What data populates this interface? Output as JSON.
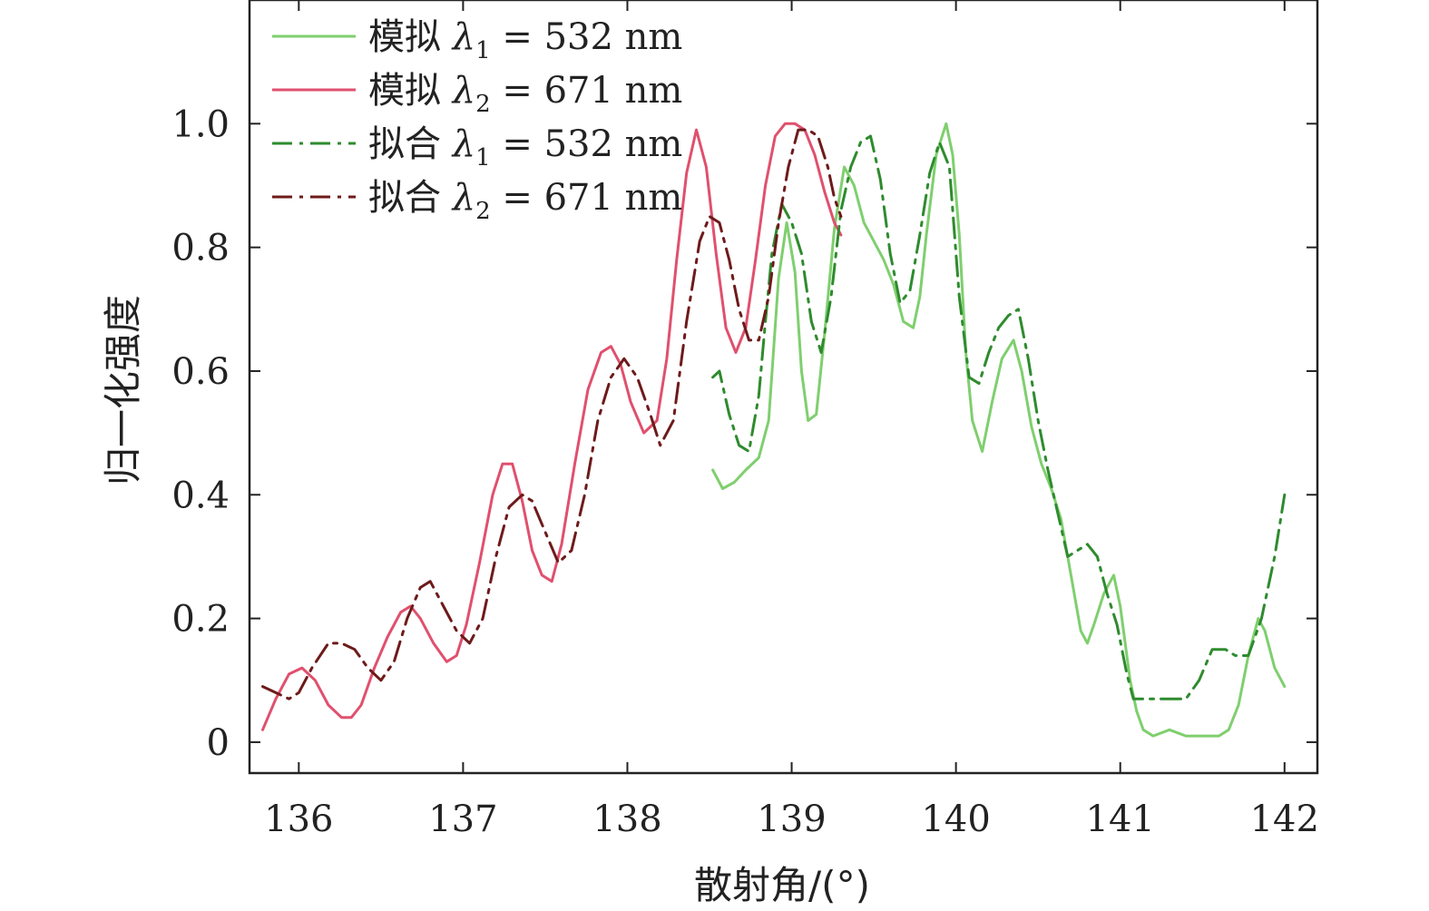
{
  "chart_data": {
    "type": "line",
    "xlabel": "散射角/(°)",
    "ylabel": "归一化强度",
    "xlim": [
      135.7,
      142.2
    ],
    "ylim": [
      -0.05,
      1.2
    ],
    "xticks": [
      136,
      137,
      138,
      139,
      140,
      141,
      142
    ],
    "yticks": [
      0,
      0.2,
      0.4,
      0.6,
      0.8,
      1.0
    ],
    "ytick_labels": [
      "0",
      "0.2",
      "0.4",
      "0.6",
      "0.8",
      "1.0"
    ],
    "grid": false,
    "legend_position": "top-left",
    "series": [
      {
        "name": "模拟 λ1 = 532 nm",
        "legend_prefix": "模拟 ",
        "legend_symbol": "λ",
        "legend_sub": "1",
        "legend_suffix": " = 532 nm",
        "color": "#7fcf6e",
        "style": "solid",
        "x": [
          138.52,
          138.58,
          138.65,
          138.72,
          138.8,
          138.86,
          138.92,
          138.97,
          139.02,
          139.06,
          139.1,
          139.15,
          139.2,
          139.26,
          139.32,
          139.38,
          139.44,
          139.5,
          139.56,
          139.62,
          139.68,
          139.74,
          139.78,
          139.82,
          139.88,
          139.94,
          139.98,
          140.02,
          140.06,
          140.1,
          140.16,
          140.22,
          140.28,
          140.35,
          140.4,
          140.46,
          140.52,
          140.58,
          140.64,
          140.7,
          140.76,
          140.8,
          140.84,
          140.9,
          140.96,
          141.0,
          141.06,
          141.1,
          141.14,
          141.2,
          141.3,
          141.4,
          141.5,
          141.6,
          141.66,
          141.72,
          141.78,
          141.84,
          141.88,
          141.94,
          142.0
        ],
        "y": [
          0.44,
          0.41,
          0.42,
          0.44,
          0.46,
          0.52,
          0.75,
          0.84,
          0.76,
          0.6,
          0.52,
          0.53,
          0.66,
          0.83,
          0.93,
          0.9,
          0.84,
          0.81,
          0.78,
          0.74,
          0.68,
          0.67,
          0.72,
          0.82,
          0.95,
          1.0,
          0.95,
          0.82,
          0.63,
          0.52,
          0.47,
          0.55,
          0.62,
          0.65,
          0.6,
          0.51,
          0.45,
          0.41,
          0.36,
          0.27,
          0.18,
          0.16,
          0.19,
          0.24,
          0.27,
          0.22,
          0.1,
          0.05,
          0.02,
          0.01,
          0.02,
          0.01,
          0.01,
          0.01,
          0.02,
          0.06,
          0.14,
          0.2,
          0.18,
          0.12,
          0.09
        ]
      },
      {
        "name": "模拟 λ2 = 671 nm",
        "legend_prefix": "模拟 ",
        "legend_symbol": "λ",
        "legend_sub": "2",
        "legend_suffix": " = 671 nm",
        "color": "#e0506e",
        "style": "solid",
        "x": [
          135.78,
          135.86,
          135.94,
          136.02,
          136.1,
          136.18,
          136.26,
          136.32,
          136.38,
          136.46,
          136.54,
          136.62,
          136.68,
          136.74,
          136.82,
          136.9,
          136.96,
          137.02,
          137.1,
          137.18,
          137.24,
          137.3,
          137.36,
          137.42,
          137.48,
          137.54,
          137.6,
          137.68,
          137.76,
          137.84,
          137.9,
          137.96,
          138.02,
          138.1,
          138.18,
          138.24,
          138.3,
          138.36,
          138.42,
          138.48,
          138.54,
          138.6,
          138.66,
          138.72,
          138.78,
          138.84,
          138.9,
          138.96,
          139.02,
          139.08,
          139.14,
          139.2,
          139.26,
          139.3
        ],
        "y": [
          0.02,
          0.07,
          0.11,
          0.12,
          0.1,
          0.06,
          0.04,
          0.04,
          0.06,
          0.12,
          0.17,
          0.21,
          0.22,
          0.2,
          0.16,
          0.13,
          0.14,
          0.19,
          0.29,
          0.4,
          0.45,
          0.45,
          0.39,
          0.31,
          0.27,
          0.26,
          0.32,
          0.45,
          0.57,
          0.63,
          0.64,
          0.61,
          0.55,
          0.5,
          0.52,
          0.62,
          0.78,
          0.92,
          0.99,
          0.93,
          0.79,
          0.67,
          0.63,
          0.67,
          0.78,
          0.9,
          0.98,
          1.0,
          1.0,
          0.99,
          0.95,
          0.89,
          0.84,
          0.82
        ]
      },
      {
        "name": "拟合 λ1 = 532 nm",
        "legend_prefix": "拟合 ",
        "legend_symbol": "λ",
        "legend_sub": "1",
        "legend_suffix": " = 532 nm",
        "color": "#2e8b2e",
        "style": "dashdot",
        "x": [
          138.52,
          138.56,
          138.62,
          138.68,
          138.74,
          138.8,
          138.84,
          138.88,
          138.94,
          139.0,
          139.06,
          139.12,
          139.18,
          139.24,
          139.3,
          139.36,
          139.42,
          139.48,
          139.54,
          139.6,
          139.66,
          139.72,
          139.78,
          139.84,
          139.9,
          139.96,
          140.02,
          140.08,
          140.14,
          140.2,
          140.26,
          140.32,
          140.38,
          140.44,
          140.5,
          140.56,
          140.62,
          140.68,
          140.74,
          140.8,
          140.86,
          140.92,
          140.98,
          141.04,
          141.08,
          141.12,
          141.2,
          141.3,
          141.4,
          141.48,
          141.56,
          141.64,
          141.7,
          141.78,
          141.86,
          141.94,
          142.0
        ],
        "y": [
          0.59,
          0.6,
          0.53,
          0.48,
          0.47,
          0.56,
          0.68,
          0.79,
          0.87,
          0.84,
          0.79,
          0.68,
          0.63,
          0.72,
          0.86,
          0.93,
          0.97,
          0.98,
          0.91,
          0.79,
          0.71,
          0.73,
          0.82,
          0.92,
          0.97,
          0.93,
          0.72,
          0.59,
          0.58,
          0.63,
          0.67,
          0.69,
          0.7,
          0.62,
          0.52,
          0.44,
          0.37,
          0.3,
          0.31,
          0.32,
          0.3,
          0.24,
          0.19,
          0.11,
          0.07,
          0.07,
          0.07,
          0.07,
          0.07,
          0.1,
          0.15,
          0.15,
          0.14,
          0.14,
          0.2,
          0.3,
          0.4
        ]
      },
      {
        "name": "拟合 λ2 = 671 nm",
        "legend_prefix": "拟合 ",
        "legend_symbol": "λ",
        "legend_sub": "2",
        "legend_suffix": " = 671 nm",
        "color": "#6e1a1a",
        "style": "dashdot",
        "x": [
          135.78,
          135.86,
          135.94,
          136.0,
          136.08,
          136.18,
          136.26,
          136.34,
          136.42,
          136.5,
          136.58,
          136.66,
          136.74,
          136.8,
          136.88,
          136.96,
          137.04,
          137.12,
          137.2,
          137.28,
          137.36,
          137.42,
          137.5,
          137.58,
          137.66,
          137.74,
          137.82,
          137.9,
          137.98,
          138.06,
          138.14,
          138.2,
          138.28,
          138.36,
          138.44,
          138.5,
          138.56,
          138.62,
          138.68,
          138.74,
          138.8,
          138.86,
          138.92,
          138.98,
          139.04,
          139.1,
          139.16,
          139.22,
          139.26,
          139.3
        ],
        "y": [
          0.09,
          0.08,
          0.07,
          0.08,
          0.12,
          0.16,
          0.16,
          0.15,
          0.12,
          0.1,
          0.13,
          0.2,
          0.25,
          0.26,
          0.22,
          0.18,
          0.16,
          0.2,
          0.3,
          0.38,
          0.4,
          0.39,
          0.34,
          0.29,
          0.31,
          0.4,
          0.52,
          0.59,
          0.62,
          0.59,
          0.53,
          0.48,
          0.52,
          0.68,
          0.81,
          0.85,
          0.84,
          0.78,
          0.7,
          0.65,
          0.65,
          0.72,
          0.84,
          0.93,
          0.99,
          0.99,
          0.98,
          0.93,
          0.88,
          0.85
        ]
      }
    ]
  }
}
